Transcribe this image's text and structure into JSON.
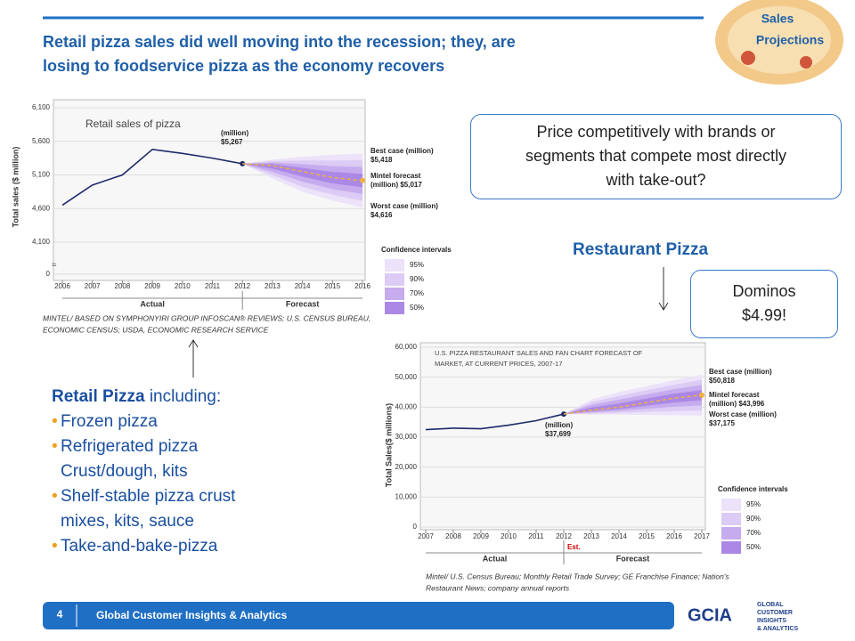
{
  "header": {
    "title_lines": [
      "Retail pizza sales did well moving into the recession; they, are",
      "losing to foodservice pizza as the economy recovers"
    ],
    "badge": [
      "Sales",
      "Projections"
    ]
  },
  "callout": {
    "lines": [
      "Price competitively with brands or",
      "segments that compete most directly",
      "with take-out?"
    ]
  },
  "restaurant_heading": "Restaurant Pizza",
  "dominos": [
    "Dominos",
    "$4.99!"
  ],
  "retail_list": {
    "heading": "Retail Pizza",
    "heading_rest": " including:",
    "items": [
      [
        "Frozen pizza"
      ],
      [
        "Refrigerated pizza",
        "Crust/dough, kits"
      ],
      [
        "Shelf-stable pizza crust",
        "mixes, kits, sauce"
      ],
      [
        "Take-and-bake-pizza"
      ]
    ]
  },
  "footer": {
    "page": "4",
    "text": "Global Customer Insights & Analytics",
    "logo": "GCIA",
    "logo_sub": [
      "GLOBAL",
      "CUSTOMER",
      "INSIGHTS",
      "& ANALYTICS"
    ]
  },
  "chart_data": [
    {
      "type": "line",
      "title": [
        "Retail sales of pizza"
      ],
      "y_label": "Total sales ($ million)",
      "x": [
        2006,
        2007,
        2008,
        2009,
        2010,
        2011,
        2012,
        2013,
        2014,
        2015,
        2016
      ],
      "xlim": [
        2006,
        2016
      ],
      "xticks": [
        2006,
        2007,
        2008,
        2009,
        2010,
        2011,
        2012,
        2013,
        2014,
        2015,
        2016
      ],
      "ylim": [
        0,
        6100
      ],
      "axis_break": [
        0,
        4100
      ],
      "yticks": [
        0,
        {
          "value": 4100,
          "label": "4,100"
        },
        {
          "value": 4600,
          "label": "4,600"
        },
        {
          "value": 5100,
          "label": "5,100"
        },
        {
          "value": 5600,
          "label": "5,600"
        },
        {
          "value": 6100,
          "label": "6,100"
        }
      ],
      "series": [
        {
          "name": "Actual",
          "color": "#1f2a6b",
          "values": [
            4650,
            4950,
            5100,
            5480,
            5420,
            5350,
            5267,
            null,
            null,
            null,
            null
          ]
        },
        {
          "name": "Forecast",
          "color": "#f0b040",
          "values": [
            null,
            null,
            null,
            null,
            null,
            null,
            5267,
            5240,
            5150,
            5060,
            5017
          ]
        }
      ],
      "fan": {
        "upper": [
          null,
          null,
          null,
          null,
          null,
          null,
          5267,
          5330,
          5370,
          5400,
          5418
        ],
        "lower": [
          null,
          null,
          null,
          null,
          null,
          null,
          5267,
          5050,
          4850,
          4720,
          4616
        ],
        "colors": [
          "#ece2f9",
          "#dccbf4",
          "#c6abee",
          "#ab88e6"
        ]
      },
      "annotations": [
        [
          "(million)",
          "$5,267"
        ],
        [
          "Best case (million)",
          "$5,418"
        ],
        [
          "Mintel forecast",
          "(million) $5,017"
        ],
        [
          "Worst case (million)",
          "$4,616"
        ]
      ],
      "legend_title": "Confidence intervals",
      "legend_labels": [
        "95%",
        "90%",
        "70%",
        "50%"
      ],
      "source": [
        "MINTEL/ BASED ON SYMPHONYIRI GROUP INFOSCAN® REVIEWS; U.S. CENSUS BUREAU,",
        "ECONOMIC CENSUS; USDA, ECONOMIC RESEARCH SERVICE"
      ],
      "grid": true
    },
    {
      "type": "line",
      "title": [
        "U.S. PIZZA RESTAURANT SALES AND FAN CHART FORECAST OF",
        "MARKET, AT CURRENT PRICES, 2007-17"
      ],
      "y_label": "Total Sales($ millions)",
      "x": [
        2007,
        2008,
        2009,
        2010,
        2011,
        2012,
        2013,
        2014,
        2015,
        2016,
        2017
      ],
      "xlim": [
        2007,
        2017
      ],
      "xticks": [
        2007,
        2008,
        2009,
        2010,
        2011,
        2012,
        2013,
        2014,
        2015,
        2016,
        2017
      ],
      "ylim": [
        0,
        60000
      ],
      "yticks": [
        0,
        {
          "value": 10000,
          "label": "10,000"
        },
        {
          "value": 20000,
          "label": "20,000"
        },
        {
          "value": 30000,
          "label": "30,000"
        },
        {
          "value": 40000,
          "label": "40,000"
        },
        {
          "value": 50000,
          "label": "50,000"
        },
        {
          "value": 60000,
          "label": "60,000"
        }
      ],
      "series": [
        {
          "name": "Actual",
          "color": "#1f2a6b",
          "values": [
            32500,
            33000,
            32800,
            34000,
            35500,
            37699,
            null,
            null,
            null,
            null,
            null
          ]
        },
        {
          "name": "Forecast",
          "color": "#f0b040",
          "values": [
            null,
            null,
            null,
            null,
            null,
            37699,
            39000,
            40000,
            41500,
            43000,
            43996
          ]
        }
      ],
      "fan": {
        "upper": [
          null,
          null,
          null,
          null,
          null,
          37699,
          42500,
          45000,
          47000,
          49000,
          50818
        ],
        "lower": [
          null,
          null,
          null,
          null,
          null,
          37699,
          37500,
          37500,
          37400,
          37300,
          37175
        ],
        "colors": [
          "#ece2f9",
          "#dccbf4",
          "#c6abee",
          "#ab88e6"
        ]
      },
      "annotations": [
        [
          "(million)",
          "$37,699"
        ],
        [
          "Best case (million)",
          "$50,818"
        ],
        [
          "Mintel forecast",
          "(million)  $43,996"
        ],
        [
          "Worst case (million)",
          "$37,175"
        ]
      ],
      "est_label": "Est.",
      "legend_title": "Confidence intervals",
      "legend_labels": [
        "95%",
        "90%",
        "70%",
        "50%"
      ],
      "source": [
        "Mintel/ U.S. Census Bureau; Monthly Retail Trade Survey; GE Franchise Finance; Nation's",
        "Restaurant News; company annual reports"
      ],
      "grid": true
    }
  ]
}
